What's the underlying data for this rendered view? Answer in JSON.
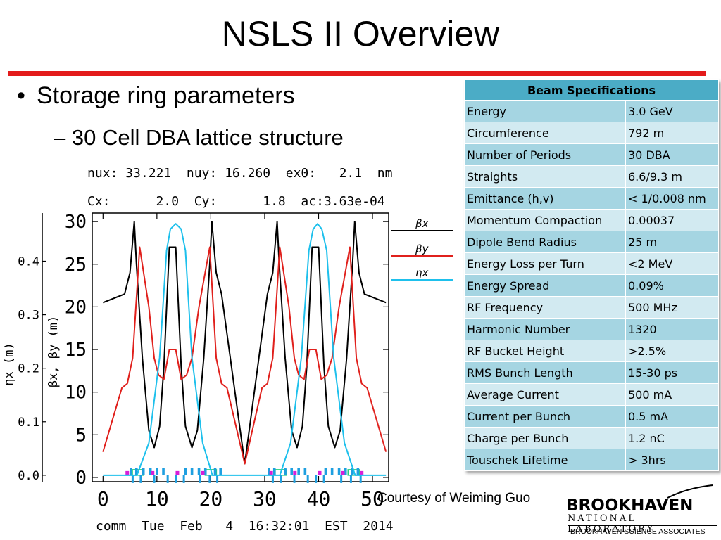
{
  "slide": {
    "title": "NSLS II Overview",
    "bullet_1": "Storage ring parameters",
    "bullet_2": "– 30 Cell DBA lattice structure",
    "courtesy": "Courtesy of Weiming Guo"
  },
  "logo": {
    "name": "BROOKHAVEN",
    "subtitle": "NATIONAL LABORATORY",
    "associates": "BROOKHAVEN SCIENCE ASSOCIATES"
  },
  "spec_table": {
    "header": "Beam Specifications",
    "rows": [
      {
        "param": "Energy",
        "value": "3.0 GeV"
      },
      {
        "param": "Circumference",
        "value": "792 m"
      },
      {
        "param": "Number of Periods",
        "value": "30 DBA"
      },
      {
        "param": "Straights",
        "value": "6.6/9.3 m"
      },
      {
        "param": "Emittance (h,v)",
        "value": "< 1/0.008 nm"
      },
      {
        "param": "Momentum Compaction",
        "value": "0.00037"
      },
      {
        "param": "Dipole Bend Radius",
        "value": "25 m"
      },
      {
        "param": "Energy Loss per Turn",
        "value": "<2 MeV"
      },
      {
        "param": "Energy Spread",
        "value": "0.09%"
      },
      {
        "param": "RF Frequency",
        "value": "500 MHz"
      },
      {
        "param": "Harmonic Number",
        "value": "1320"
      },
      {
        "param": "RF Bucket Height",
        "value": ">2.5%"
      },
      {
        "param": "RMS Bunch Length",
        "value": "15-30 ps"
      },
      {
        "param": "Average Current",
        "value": "500 mA"
      },
      {
        "param": "Current per Bunch",
        "value": "0.5 mA"
      },
      {
        "param": "Charge per Bunch",
        "value": "1.2 nC"
      },
      {
        "param": "Touschek Lifetime",
        "value": "> 3hrs"
      }
    ]
  },
  "plot_header": {
    "line1": "nux: 33.221  nuy: 16.260  ex0:   2.1  nm",
    "line2": "Cx:      2.0  Cy:      1.8  ac:3.63e-04"
  },
  "plot_footer": "comm  Tue  Feb   4  16:32:01  EST  2014",
  "chart_data": {
    "type": "line",
    "x_ticks": [
      "0",
      "10",
      "20",
      "30",
      "40",
      "50"
    ],
    "y_left_ticks": [
      "0.0",
      "0.1",
      "0.2",
      "0.3",
      "0.4"
    ],
    "y_right_ticks": [
      "0",
      "5",
      "10",
      "15",
      "20",
      "25",
      "30"
    ],
    "ylabel_left": "ηx (m)",
    "ylabel_right": "βx, βy (m)",
    "legend": [
      {
        "label": "βx",
        "color": "#000000"
      },
      {
        "label": "βy",
        "color": "#e0201c"
      },
      {
        "label": "ηx",
        "color": "#1ec0ec"
      }
    ],
    "xlim": [
      -2,
      53
    ],
    "ylim_beta": [
      -0.5,
      31
    ],
    "ylim_eta": [
      -0.012,
      0.49
    ],
    "series": [
      {
        "name": "βx",
        "color": "#000000",
        "points": [
          [
            0,
            20.5
          ],
          [
            4,
            21.5
          ],
          [
            5,
            24
          ],
          [
            5.8,
            30
          ],
          [
            6.2,
            25
          ],
          [
            7.3,
            14
          ],
          [
            8.5,
            5.5
          ],
          [
            9.5,
            3.5
          ],
          [
            10.5,
            6
          ],
          [
            11.3,
            13
          ],
          [
            12.3,
            27
          ],
          [
            13.5,
            27
          ],
          [
            14.5,
            13
          ],
          [
            15.3,
            6
          ],
          [
            16.5,
            3.5
          ],
          [
            17.5,
            5.5
          ],
          [
            18.7,
            14
          ],
          [
            19.8,
            25
          ],
          [
            20.2,
            30
          ],
          [
            21,
            24
          ],
          [
            22,
            21.5
          ],
          [
            26.3,
            1.6
          ],
          [
            30.5,
            21.5
          ],
          [
            31.5,
            24
          ],
          [
            32.3,
            30
          ],
          [
            32.7,
            25
          ],
          [
            33.8,
            14
          ],
          [
            35,
            5.5
          ],
          [
            36,
            3.5
          ],
          [
            37,
            6
          ],
          [
            37.8,
            13
          ],
          [
            38.8,
            27
          ],
          [
            40,
            27
          ],
          [
            41,
            13
          ],
          [
            41.8,
            6
          ],
          [
            43,
            3.5
          ],
          [
            44,
            5.5
          ],
          [
            45.2,
            14
          ],
          [
            46.3,
            25
          ],
          [
            46.7,
            30
          ],
          [
            47.5,
            24
          ],
          [
            48.5,
            21.5
          ],
          [
            52.5,
            20.5
          ]
        ]
      },
      {
        "name": "βy",
        "color": "#e0201c",
        "points": [
          [
            0,
            3
          ],
          [
            3.5,
            10.5
          ],
          [
            4.5,
            11
          ],
          [
            5.5,
            14
          ],
          [
            6.8,
            27
          ],
          [
            8.5,
            20
          ],
          [
            9.5,
            14
          ],
          [
            10.3,
            12
          ],
          [
            11.3,
            11.5
          ],
          [
            12.3,
            15
          ],
          [
            13.5,
            15
          ],
          [
            14.5,
            11.5
          ],
          [
            15.5,
            12
          ],
          [
            16.5,
            14
          ],
          [
            17.8,
            20
          ],
          [
            19.8,
            27
          ],
          [
            21,
            14
          ],
          [
            22,
            11
          ],
          [
            23,
            10.5
          ],
          [
            26.3,
            1.6
          ],
          [
            29.5,
            10.5
          ],
          [
            30.5,
            11
          ],
          [
            31.5,
            14
          ],
          [
            32.8,
            27
          ],
          [
            34.5,
            20
          ],
          [
            35.5,
            14
          ],
          [
            36.3,
            12
          ],
          [
            37.3,
            11.5
          ],
          [
            38.3,
            15
          ],
          [
            39.5,
            15
          ],
          [
            40.5,
            11.5
          ],
          [
            41.5,
            12
          ],
          [
            42.5,
            14
          ],
          [
            43.8,
            20
          ],
          [
            45.8,
            27
          ],
          [
            47,
            14
          ],
          [
            48,
            11
          ],
          [
            49,
            10.5
          ],
          [
            52.5,
            3
          ]
        ]
      },
      {
        "name": "ηx",
        "color": "#1ec0ec",
        "points": [
          [
            0,
            0
          ],
          [
            6.3,
            0
          ],
          [
            8.5,
            0.06
          ],
          [
            10.5,
            0.22
          ],
          [
            11.8,
            0.42
          ],
          [
            12.5,
            0.46
          ],
          [
            13.5,
            0.47
          ],
          [
            14.5,
            0.46
          ],
          [
            15.3,
            0.42
          ],
          [
            16.5,
            0.22
          ],
          [
            18.5,
            0.06
          ],
          [
            20.3,
            0
          ],
          [
            32.8,
            0
          ],
          [
            34.8,
            0.06
          ],
          [
            36.8,
            0.22
          ],
          [
            38.2,
            0.42
          ],
          [
            39,
            0.46
          ],
          [
            39.8,
            0.47
          ],
          [
            40.6,
            0.46
          ],
          [
            41.5,
            0.42
          ],
          [
            42.8,
            0.22
          ],
          [
            44.8,
            0.06
          ],
          [
            46.8,
            0
          ],
          [
            52.5,
            0
          ]
        ]
      }
    ],
    "magnets": {
      "dipoles": [
        6.5,
        20,
        33,
        46.5
      ],
      "quads": [
        5.2,
        6.2,
        7.5,
        8.8,
        10,
        11.2,
        15.3,
        16.5,
        17.8,
        19,
        20.8,
        21.8,
        30.8,
        31.8,
        33.8,
        35,
        36.3,
        37.5,
        41.3,
        42.5,
        43.8,
        45,
        46.3,
        47.3
      ],
      "sextupoles": [
        4.5,
        9.2,
        13.8,
        18.5,
        31.2,
        35.6,
        40.2,
        44.5,
        48
      ],
      "bpms": [
        5.5,
        7,
        9.5,
        12,
        13.5,
        15,
        18,
        19.8,
        21.2,
        31.5,
        33,
        35.5,
        38,
        39.5,
        41,
        44.2,
        46,
        47.8
      ]
    }
  }
}
